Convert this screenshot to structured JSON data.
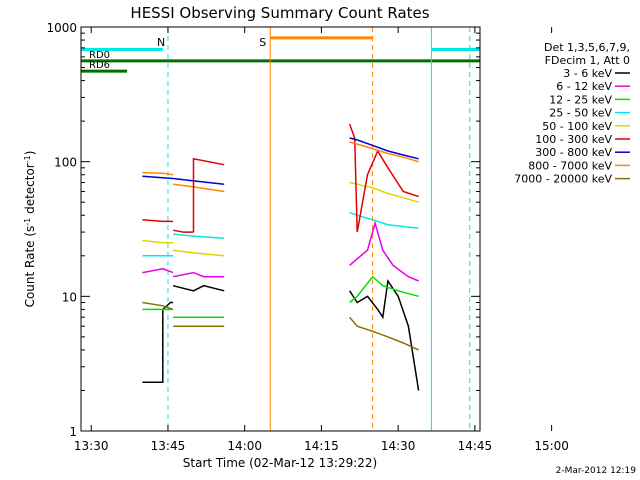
{
  "colors": {
    "c3_6": "#000000",
    "c6_12": "#e800e8",
    "c12_25": "#00e000",
    "c25_50": "#00e8e8",
    "c50_100": "#d8d800",
    "c100_300": "#e00000",
    "c300_800": "#0000d0",
    "c800_7000": "#ff8800",
    "c7000_20000": "#8b7000",
    "markers_cyan": "#00e8e8",
    "markers_green": "#007000",
    "markers_orange": "#ff8800"
  },
  "chart_data": {
    "type": "line",
    "title": "HESSI Observing Summary Count Rates",
    "xlabel": "Start Time (02-Mar-12 13:29:22)",
    "ylabel_main": "Count Rate (s",
    "ylabel_sup1": "-1",
    "ylabel_mid": " detector",
    "ylabel_sup2": "-1",
    "ylabel_end": ")",
    "y_scale": "log",
    "ylim": [
      1,
      1000
    ],
    "xlim_minutes": [
      -2,
      76
    ],
    "x_ticks": [
      {
        "label": "13:30",
        "t": 0
      },
      {
        "label": "13:45",
        "t": 15
      },
      {
        "label": "14:00",
        "t": 30
      },
      {
        "label": "14:15",
        "t": 45
      },
      {
        "label": "14:30",
        "t": 60
      },
      {
        "label": "14:45",
        "t": 75
      },
      {
        "label": "15:00",
        "t": 90
      }
    ],
    "y_ticks": [
      {
        "label": "1",
        "v": 1
      },
      {
        "label": "10",
        "v": 10
      },
      {
        "label": "100",
        "v": 100
      },
      {
        "label": "1000",
        "v": 1000
      }
    ],
    "legend_header": [
      "Det 1,3,5,6,7,9,",
      "FDecim 1, Att 0"
    ],
    "series": [
      {
        "name": "3 - 6 keV",
        "color_key": "c3_6",
        "segments": [
          {
            "x": [
              10,
              14,
              14,
              14,
              15.5,
              16
            ],
            "y": [
              2.3,
              2.3,
              6,
              8,
              9,
              9
            ]
          },
          {
            "x": [
              16,
              20,
              22,
              26
            ],
            "y": [
              12,
              11,
              12,
              11
            ]
          },
          {
            "x": [
              50.5,
              52,
              54,
              56,
              57,
              58,
              60,
              62,
              64
            ],
            "y": [
              11,
              9,
              10,
              8,
              7,
              13,
              10,
              6,
              2
            ]
          }
        ]
      },
      {
        "name": "6 - 12 keV",
        "color_key": "c6_12",
        "segments": [
          {
            "x": [
              10,
              14,
              16
            ],
            "y": [
              15,
              16,
              15
            ]
          },
          {
            "x": [
              16,
              20,
              22,
              26
            ],
            "y": [
              14,
              15,
              14,
              14
            ]
          },
          {
            "x": [
              50.5,
              52,
              54,
              55.5,
              57,
              59,
              62,
              64
            ],
            "y": [
              17,
              19,
              22,
              35,
              22,
              17,
              14,
              13
            ]
          }
        ]
      },
      {
        "name": "12 - 25 keV",
        "color_key": "c12_25",
        "segments": [
          {
            "x": [
              10,
              14,
              16
            ],
            "y": [
              8,
              8,
              8
            ]
          },
          {
            "x": [
              16,
              22,
              26
            ],
            "y": [
              7,
              7,
              7
            ]
          },
          {
            "x": [
              50.5,
              52,
              55,
              57,
              60,
              64
            ],
            "y": [
              9,
              10,
              14,
              12,
              11,
              10
            ]
          }
        ]
      },
      {
        "name": "25 - 50 keV",
        "color_key": "c25_50",
        "segments": [
          {
            "x": [
              10,
              14,
              16
            ],
            "y": [
              20,
              20,
              20
            ]
          },
          {
            "x": [
              16,
              20,
              26
            ],
            "y": [
              29,
              28,
              27
            ]
          },
          {
            "x": [
              50.5,
              52,
              55,
              58,
              61,
              64
            ],
            "y": [
              42,
              40,
              37,
              34,
              33,
              32
            ]
          }
        ]
      },
      {
        "name": "50 - 100 keV",
        "color_key": "c50_100",
        "segments": [
          {
            "x": [
              10,
              14,
              16
            ],
            "y": [
              26,
              25,
              25
            ]
          },
          {
            "x": [
              16,
              20,
              26
            ],
            "y": [
              22,
              21,
              20
            ]
          },
          {
            "x": [
              50.5,
              52,
              55,
              58,
              61,
              64
            ],
            "y": [
              70,
              68,
              64,
              58,
              54,
              50
            ]
          }
        ]
      },
      {
        "name": "100 - 300 keV",
        "color_key": "c100_300",
        "segments": [
          {
            "x": [
              10,
              14,
              16
            ],
            "y": [
              37,
              36,
              36
            ]
          },
          {
            "x": [
              16,
              18,
              20
            ],
            "y": [
              31,
              30,
              30
            ]
          },
          {
            "x": [
              50.5,
              51.5,
              52,
              54,
              56,
              58,
              61,
              64
            ],
            "y": [
              190,
              150,
              30,
              80,
              120,
              90,
              60,
              55
            ]
          }
        ]
      },
      {
        "name": "300 - 800 keV",
        "color_key": "c300_800",
        "segments": [
          {
            "x": [
              10,
              14,
              16
            ],
            "y": [
              78,
              76,
              75
            ]
          },
          {
            "x": [
              16,
              20,
              26
            ],
            "y": [
              75,
              72,
              68
            ]
          },
          {
            "x": [
              50.5,
              52,
              55,
              58,
              61,
              64
            ],
            "y": [
              150,
              145,
              132,
              120,
              112,
              105
            ]
          }
        ]
      },
      {
        "name": "800 - 7000 keV",
        "color_key": "c800_7000",
        "segments": [
          {
            "x": [
              10,
              14,
              16
            ],
            "y": [
              83,
              82,
              80
            ]
          },
          {
            "x": [
              16,
              20,
              26
            ],
            "y": [
              68,
              65,
              60
            ]
          },
          {
            "x": [
              50.5,
              52,
              55,
              58,
              61,
              64
            ],
            "y": [
              140,
              135,
              125,
              115,
              108,
              100
            ]
          }
        ]
      },
      {
        "name": "7000 - 20000 keV",
        "color_key": "c7000_20000",
        "segments": [
          {
            "x": [
              10,
              14,
              16
            ],
            "y": [
              9,
              8.5,
              8
            ]
          },
          {
            "x": [
              16,
              20,
              26
            ],
            "y": [
              6,
              6,
              6
            ]
          },
          {
            "x": [
              50.5,
              52,
              55,
              58,
              61,
              64
            ],
            "y": [
              7,
              6,
              5.5,
              5,
              4.5,
              4
            ]
          }
        ]
      }
    ],
    "extra_segments": [
      {
        "series": "100 - 300 keV",
        "x": [
          20,
          20,
          26
        ],
        "y": [
          30,
          105,
          95
        ]
      }
    ],
    "annotations": [
      {
        "label": "N",
        "t": 15,
        "color_key": "markers_cyan",
        "style": "dashed"
      },
      {
        "label": "S",
        "t": 35,
        "color_key": "markers_orange",
        "style": "solid"
      },
      {
        "label": "",
        "t": 55,
        "color_key": "markers_orange",
        "style": "dashed"
      },
      {
        "label": "",
        "t": 66.5,
        "color_key": "markers_cyan",
        "style": "solid"
      },
      {
        "label": "",
        "t": 74,
        "color_key": "markers_cyan",
        "style": "dashed"
      }
    ],
    "state_bars": [
      {
        "label": "",
        "x0": -2,
        "x1": 14,
        "level": 680,
        "color_key": "markers_cyan"
      },
      {
        "label": "",
        "x0": 66.5,
        "x1": 76,
        "level": 680,
        "color_key": "markers_cyan"
      },
      {
        "label": "RD0",
        "x0": -2,
        "x1": 76,
        "level": 560,
        "color_key": "markers_green"
      },
      {
        "label": "RD6",
        "x0": -2,
        "x1": 7,
        "level": 470,
        "color_key": "markers_green"
      },
      {
        "label": "",
        "x0": 35,
        "x1": 55,
        "level": 830,
        "color_key": "markers_orange"
      }
    ],
    "footer_stamp": "2-Mar-2012 12:19"
  }
}
